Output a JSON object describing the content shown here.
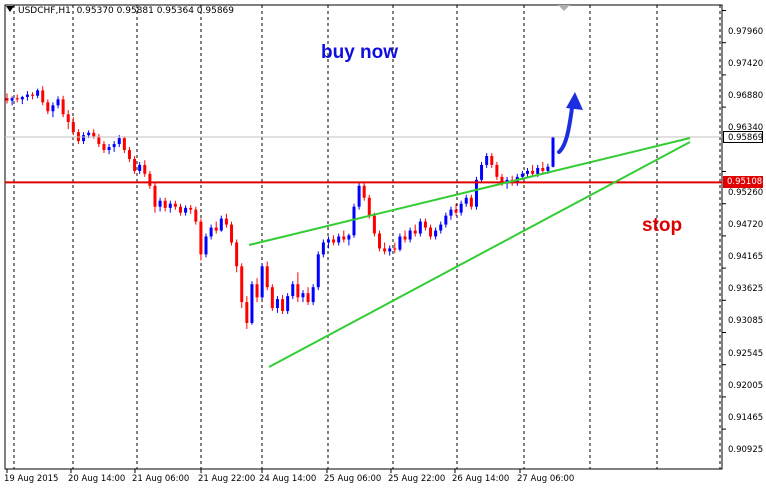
{
  "header": {
    "symbol": "USDCHF,H1",
    "ohlc": "0.95370 0.95881 0.95364 0.95869"
  },
  "price_axis": {
    "labels": [
      "0.97960",
      "0.97420",
      "0.96880",
      "0.96340",
      "0.95260",
      "0.94720",
      "0.94165",
      "0.93625",
      "0.93085",
      "0.92545",
      "0.92005",
      "0.91465",
      "0.90925"
    ]
  },
  "current_price": "0.95869",
  "stop_price": "0.95108",
  "time_axis": {
    "labels": [
      "19 Aug 2015",
      "20 Aug 14:00",
      "21 Aug 06:00",
      "21 Aug 22:00",
      "24 Aug 14:00",
      "25 Aug 06:00",
      "25 Aug 22:00",
      "26 Aug 14:00",
      "27 Aug 06:00"
    ]
  },
  "annotations": {
    "buy_text": "buy now",
    "stop_text": "stop"
  },
  "colors": {
    "bull": "#0000ff",
    "bear": "#ff0000",
    "wedge": "#32cd32",
    "stop_line": "#e00000",
    "buy_text": "#1010dd",
    "stop_text": "#dd0000",
    "grid": "#000000",
    "current_tag_bg": "#ffffff",
    "stop_tag_bg": "#e00000"
  },
  "chart_data": {
    "type": "candlestick",
    "symbol": "USDCHF",
    "timeframe": "H1",
    "ylim": [
      0.9065,
      0.9815
    ],
    "pattern": "rising wedge",
    "stop_level": 0.95108,
    "last_close": 0.95869,
    "candles": [
      [
        0.9652,
        0.966,
        0.9643,
        0.9648
      ],
      [
        0.9648,
        0.9655,
        0.964,
        0.9652
      ],
      [
        0.9652,
        0.9658,
        0.9645,
        0.965
      ],
      [
        0.965,
        0.9656,
        0.9642,
        0.9654
      ],
      [
        0.9654,
        0.9664,
        0.9648,
        0.9658
      ],
      [
        0.9658,
        0.9662,
        0.965,
        0.9656
      ],
      [
        0.9656,
        0.9668,
        0.9652,
        0.9665
      ],
      [
        0.9665,
        0.9672,
        0.964,
        0.9645
      ],
      [
        0.9645,
        0.965,
        0.9625,
        0.963
      ],
      [
        0.963,
        0.9645,
        0.962,
        0.964
      ],
      [
        0.964,
        0.9655,
        0.9635,
        0.965
      ],
      [
        0.965,
        0.9656,
        0.962,
        0.9625
      ],
      [
        0.9625,
        0.9632,
        0.96,
        0.9612
      ],
      [
        0.9612,
        0.962,
        0.959,
        0.9595
      ],
      [
        0.9595,
        0.96,
        0.9575,
        0.958
      ],
      [
        0.958,
        0.9595,
        0.9575,
        0.959
      ],
      [
        0.959,
        0.9598,
        0.9585,
        0.9594
      ],
      [
        0.9594,
        0.96,
        0.9584,
        0.9588
      ],
      [
        0.9588,
        0.9592,
        0.957,
        0.9575
      ],
      [
        0.9575,
        0.958,
        0.956,
        0.9565
      ],
      [
        0.9565,
        0.9575,
        0.9558,
        0.957
      ],
      [
        0.957,
        0.958,
        0.9562,
        0.9575
      ],
      [
        0.9575,
        0.959,
        0.957,
        0.9585
      ],
      [
        0.9585,
        0.9588,
        0.956,
        0.9565
      ],
      [
        0.9565,
        0.957,
        0.9545,
        0.955
      ],
      [
        0.955,
        0.9555,
        0.9525,
        0.953
      ],
      [
        0.953,
        0.9545,
        0.9525,
        0.954
      ],
      [
        0.954,
        0.9548,
        0.952,
        0.9525
      ],
      [
        0.9525,
        0.953,
        0.95,
        0.9505
      ],
      [
        0.9505,
        0.951,
        0.946,
        0.947
      ],
      [
        0.947,
        0.9485,
        0.9462,
        0.948
      ],
      [
        0.948,
        0.9485,
        0.9462,
        0.9468
      ],
      [
        0.9468,
        0.948,
        0.946,
        0.9475
      ],
      [
        0.9475,
        0.948,
        0.9465,
        0.947
      ],
      [
        0.947,
        0.9475,
        0.9455,
        0.946
      ],
      [
        0.946,
        0.9472,
        0.9455,
        0.9468
      ],
      [
        0.9468,
        0.9473,
        0.9458,
        0.9465
      ],
      [
        0.9465,
        0.947,
        0.944,
        0.9445
      ],
      [
        0.9445,
        0.945,
        0.938,
        0.939
      ],
      [
        0.939,
        0.9425,
        0.9385,
        0.942
      ],
      [
        0.942,
        0.944,
        0.9415,
        0.9435
      ],
      [
        0.9435,
        0.9445,
        0.9425,
        0.943
      ],
      [
        0.943,
        0.9455,
        0.9428,
        0.945
      ],
      [
        0.945,
        0.9458,
        0.9435,
        0.944
      ],
      [
        0.944,
        0.9445,
        0.9405,
        0.941
      ],
      [
        0.941,
        0.9415,
        0.936,
        0.937
      ],
      [
        0.937,
        0.9375,
        0.93,
        0.931
      ],
      [
        0.931,
        0.932,
        0.9265,
        0.9275
      ],
      [
        0.9275,
        0.9345,
        0.9272,
        0.934
      ],
      [
        0.934,
        0.935,
        0.931,
        0.9318
      ],
      [
        0.9318,
        0.9375,
        0.9315,
        0.937
      ],
      [
        0.937,
        0.9378,
        0.933,
        0.9335
      ],
      [
        0.9335,
        0.934,
        0.9295,
        0.93
      ],
      [
        0.93,
        0.932,
        0.9292,
        0.9315
      ],
      [
        0.9315,
        0.9322,
        0.929,
        0.9295
      ],
      [
        0.9295,
        0.9325,
        0.929,
        0.932
      ],
      [
        0.932,
        0.9345,
        0.9315,
        0.934
      ],
      [
        0.934,
        0.936,
        0.931,
        0.9318
      ],
      [
        0.9318,
        0.933,
        0.931,
        0.9325
      ],
      [
        0.9325,
        0.9335,
        0.9305,
        0.931
      ],
      [
        0.931,
        0.934,
        0.9305,
        0.9335
      ],
      [
        0.9335,
        0.9395,
        0.933,
        0.939
      ],
      [
        0.939,
        0.9415,
        0.9385,
        0.941
      ],
      [
        0.941,
        0.942,
        0.94,
        0.9415
      ],
      [
        0.9415,
        0.9422,
        0.9405,
        0.941
      ],
      [
        0.941,
        0.9425,
        0.9405,
        0.942
      ],
      [
        0.942,
        0.943,
        0.941,
        0.9415
      ],
      [
        0.9415,
        0.9425,
        0.9405,
        0.9422
      ],
      [
        0.9422,
        0.9475,
        0.9418,
        0.947
      ],
      [
        0.947,
        0.951,
        0.9465,
        0.9505
      ],
      [
        0.9505,
        0.951,
        0.948,
        0.9485
      ],
      [
        0.9485,
        0.949,
        0.945,
        0.9455
      ],
      [
        0.9455,
        0.946,
        0.942,
        0.9425
      ],
      [
        0.9425,
        0.943,
        0.9395,
        0.94
      ],
      [
        0.94,
        0.941,
        0.939,
        0.9395
      ],
      [
        0.9395,
        0.9405,
        0.9388,
        0.94
      ],
      [
        0.94,
        0.941,
        0.9392,
        0.9398
      ],
      [
        0.9398,
        0.9425,
        0.9395,
        0.942
      ],
      [
        0.942,
        0.943,
        0.941,
        0.9415
      ],
      [
        0.9415,
        0.9435,
        0.941,
        0.943
      ],
      [
        0.943,
        0.944,
        0.942,
        0.9425
      ],
      [
        0.9425,
        0.945,
        0.942,
        0.9445
      ],
      [
        0.9445,
        0.945,
        0.943,
        0.9435
      ],
      [
        0.9435,
        0.944,
        0.9415,
        0.942
      ],
      [
        0.942,
        0.9435,
        0.9415,
        0.943
      ],
      [
        0.943,
        0.9445,
        0.9425,
        0.944
      ],
      [
        0.944,
        0.946,
        0.9435,
        0.9455
      ],
      [
        0.9455,
        0.947,
        0.9448,
        0.9465
      ],
      [
        0.9465,
        0.9475,
        0.9455,
        0.946
      ],
      [
        0.946,
        0.948,
        0.9455,
        0.9475
      ],
      [
        0.9475,
        0.949,
        0.947,
        0.9485
      ],
      [
        0.9485,
        0.949,
        0.9465,
        0.947
      ],
      [
        0.947,
        0.952,
        0.9465,
        0.9515
      ],
      [
        0.9515,
        0.9545,
        0.951,
        0.954
      ],
      [
        0.954,
        0.956,
        0.9535,
        0.9555
      ],
      [
        0.9555,
        0.956,
        0.9535,
        0.954
      ],
      [
        0.954,
        0.9545,
        0.9515,
        0.952
      ],
      [
        0.952,
        0.9525,
        0.9505,
        0.951
      ],
      [
        0.951,
        0.952,
        0.95,
        0.9515
      ],
      [
        0.9515,
        0.9522,
        0.9505,
        0.951
      ],
      [
        0.951,
        0.9525,
        0.9505,
        0.952
      ],
      [
        0.952,
        0.953,
        0.9515,
        0.9525
      ],
      [
        0.9525,
        0.9535,
        0.952,
        0.953
      ],
      [
        0.953,
        0.954,
        0.952,
        0.9525
      ],
      [
        0.9525,
        0.954,
        0.952,
        0.9535
      ],
      [
        0.9535,
        0.9545,
        0.9525,
        0.953
      ],
      [
        0.953,
        0.9542,
        0.9525,
        0.9537
      ],
      [
        0.9537,
        0.9588,
        0.9536,
        0.9587
      ]
    ]
  }
}
